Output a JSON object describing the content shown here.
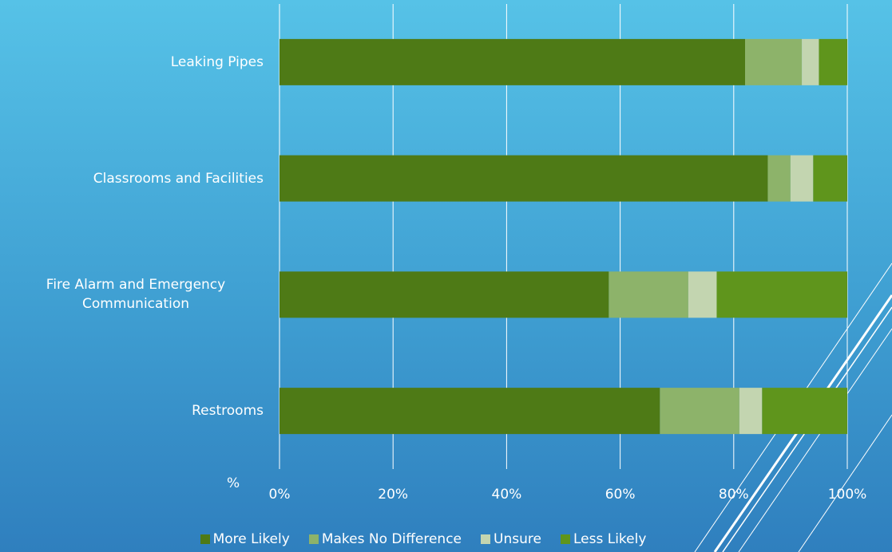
{
  "chart_data": {
    "type": "stacked_barh",
    "categories": [
      "Leaking Pipes",
      "Classrooms and Facilities",
      "Fire Alarm and Emergency Communication",
      "Restrooms"
    ],
    "series": [
      {
        "name": "More Likely",
        "color": "#4e7a16",
        "values": [
          82,
          86,
          58,
          67
        ]
      },
      {
        "name": "Makes No Difference",
        "color": "#8db36a",
        "values": [
          10,
          4,
          14,
          14
        ]
      },
      {
        "name": "Unsure",
        "color": "#c3d5b0",
        "values": [
          3,
          4,
          5,
          4
        ]
      },
      {
        "name": "Less Likely",
        "color": "#5f951c",
        "values": [
          5,
          6,
          23,
          15
        ]
      }
    ],
    "xlim": [
      0,
      100
    ],
    "xticks": [
      {
        "value": 0,
        "label": "0%"
      },
      {
        "value": 20,
        "label": "20%"
      },
      {
        "value": 40,
        "label": "40%"
      },
      {
        "value": 60,
        "label": "60%"
      },
      {
        "value": 80,
        "label": "80%"
      },
      {
        "value": 100,
        "label": "100%"
      }
    ],
    "grid": true,
    "legend": "bottom",
    "annotation": "%"
  }
}
